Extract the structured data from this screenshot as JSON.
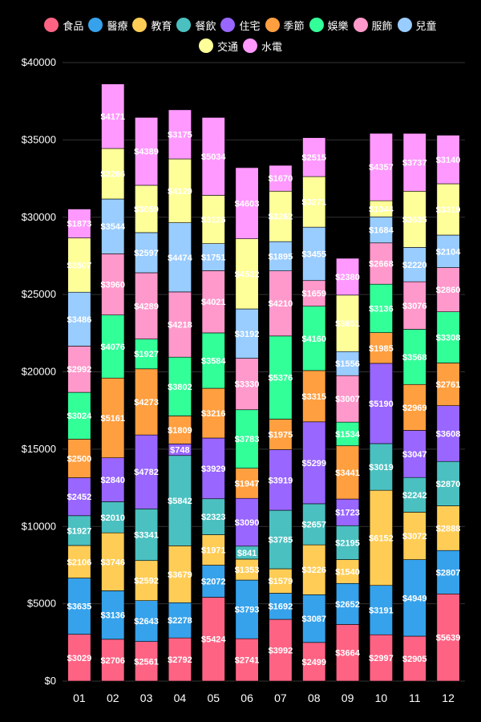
{
  "chart_data": {
    "type": "bar",
    "stacked": true,
    "categories": [
      "01",
      "02",
      "03",
      "04",
      "05",
      "06",
      "07",
      "08",
      "09",
      "10",
      "11",
      "12"
    ],
    "ylim": [
      0,
      40000
    ],
    "yticks": [
      0,
      5000,
      10000,
      15000,
      20000,
      25000,
      30000,
      35000,
      40000
    ],
    "ytick_labels": [
      "$0",
      "$5000",
      "$10000",
      "$15000",
      "$20000",
      "$25000",
      "$30000",
      "$35000",
      "$40000"
    ],
    "grid": true,
    "legend_position": "top",
    "series": [
      {
        "name": "食品",
        "color": "#ff6384",
        "values": [
          3029,
          2706,
          2561,
          2792,
          5424,
          2741,
          3992,
          2499,
          3664,
          2997,
          2905,
          5639
        ]
      },
      {
        "name": "醫療",
        "color": "#36a2eb",
        "values": [
          3635,
          3136,
          2643,
          2278,
          2072,
          3793,
          1692,
          3087,
          2652,
          3191,
          4949,
          2807
        ]
      },
      {
        "name": "教育",
        "color": "#ffcd56",
        "values": [
          2106,
          3746,
          2592,
          3679,
          1971,
          1353,
          1579,
          3226,
          1540,
          6152,
          3072,
          2888
        ]
      },
      {
        "name": "餐飲",
        "color": "#4bc0c0",
        "values": [
          1927,
          2010,
          3341,
          5842,
          2323,
          841,
          3785,
          2657,
          2195,
          3019,
          2242,
          2870
        ]
      },
      {
        "name": "住宅",
        "color": "#9966ff",
        "values": [
          2452,
          2840,
          4782,
          748,
          3929,
          3090,
          3919,
          5299,
          1723,
          5190,
          3047,
          3608
        ]
      },
      {
        "name": "季節",
        "color": "#ff9f40",
        "values": [
          2500,
          5161,
          4273,
          1809,
          3216,
          1947,
          1975,
          3315,
          3441,
          1985,
          2969,
          2761
        ]
      },
      {
        "name": "娛樂",
        "color": "#33ff99",
        "values": [
          3024,
          4076,
          1927,
          3802,
          3584,
          3783,
          5376,
          4160,
          1534,
          3136,
          3568,
          3308
        ]
      },
      {
        "name": "服飾",
        "color": "#ff99cc",
        "values": [
          2992,
          3960,
          4289,
          4218,
          4021,
          3330,
          4210,
          1659,
          3007,
          2668,
          3076,
          2860
        ]
      },
      {
        "name": "兒童",
        "color": "#99ccff",
        "values": [
          3486,
          3544,
          2597,
          4474,
          1751,
          3192,
          1895,
          3455,
          1556,
          1684,
          2220,
          2104
        ]
      },
      {
        "name": "交通",
        "color": "#ffff99",
        "values": [
          3507,
          3266,
          3059,
          4129,
          3126,
          4532,
          3262,
          3271,
          3651,
          1044,
          3635,
          3319
        ]
      },
      {
        "name": "水電",
        "color": "#ff99ff",
        "values": [
          1873,
          4171,
          4389,
          3175,
          5034,
          4603,
          1670,
          2515,
          2380,
          4357,
          3737,
          3140
        ]
      }
    ],
    "value_prefix": "$"
  }
}
